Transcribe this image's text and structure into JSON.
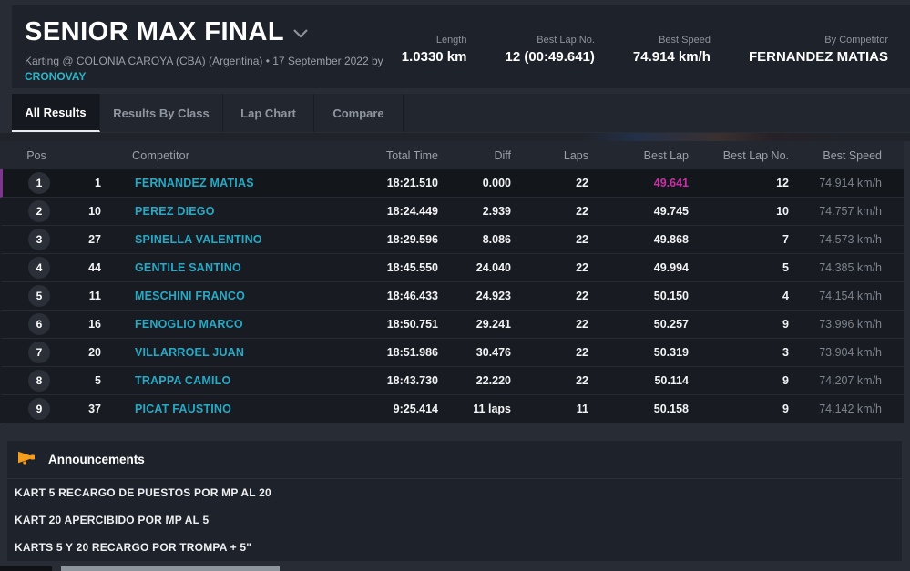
{
  "header": {
    "title": "SENIOR MAX FINAL",
    "subtitle": "Karting @ COLONIA CAROYA (CBA) (Argentina) • 17 September 2022 by",
    "organizer_link": "CRONOVAY",
    "stats": [
      {
        "label": "Length",
        "value": "1.0330 km"
      },
      {
        "label": "Best Lap No.",
        "value": "12 (00:49.641)"
      },
      {
        "label": "Best Speed",
        "value": "74.914 km/h"
      },
      {
        "label": "By Competitor",
        "value": "FERNANDEZ MATIAS"
      }
    ]
  },
  "tabs": [
    {
      "label": "All Results",
      "active": true
    },
    {
      "label": "Results By Class",
      "active": false
    },
    {
      "label": "Lap Chart",
      "active": false
    },
    {
      "label": "Compare",
      "active": false
    }
  ],
  "table": {
    "headers": [
      "Pos",
      "",
      "Competitor",
      "Total Time",
      "Diff",
      "Laps",
      "Best Lap",
      "Best Lap No.",
      "Best Speed"
    ],
    "rows": [
      {
        "pos": "1",
        "kart_no": "1",
        "competitor": "FERNANDEZ MATIAS",
        "total_time": "18:21.510",
        "diff": "0.000",
        "laps": "22",
        "best_lap": "49.641",
        "best_lap_no": "12",
        "best_speed": "74.914 km/h",
        "highlight": true
      },
      {
        "pos": "2",
        "kart_no": "10",
        "competitor": "PEREZ DIEGO",
        "total_time": "18:24.449",
        "diff": "2.939",
        "laps": "22",
        "best_lap": "49.745",
        "best_lap_no": "10",
        "best_speed": "74.757 km/h",
        "highlight": false
      },
      {
        "pos": "3",
        "kart_no": "27",
        "competitor": "SPINELLA VALENTINO",
        "total_time": "18:29.596",
        "diff": "8.086",
        "laps": "22",
        "best_lap": "49.868",
        "best_lap_no": "7",
        "best_speed": "74.573 km/h",
        "highlight": false
      },
      {
        "pos": "4",
        "kart_no": "44",
        "competitor": "GENTILE SANTINO",
        "total_time": "18:45.550",
        "diff": "24.040",
        "laps": "22",
        "best_lap": "49.994",
        "best_lap_no": "5",
        "best_speed": "74.385 km/h",
        "highlight": false
      },
      {
        "pos": "5",
        "kart_no": "11",
        "competitor": "MESCHINI FRANCO",
        "total_time": "18:46.433",
        "diff": "24.923",
        "laps": "22",
        "best_lap": "50.150",
        "best_lap_no": "4",
        "best_speed": "74.154 km/h",
        "highlight": false
      },
      {
        "pos": "6",
        "kart_no": "16",
        "competitor": "FENOGLIO MARCO",
        "total_time": "18:50.751",
        "diff": "29.241",
        "laps": "22",
        "best_lap": "50.257",
        "best_lap_no": "9",
        "best_speed": "73.996 km/h",
        "highlight": false
      },
      {
        "pos": "7",
        "kart_no": "20",
        "competitor": "VILLARROEL JUAN",
        "total_time": "18:51.986",
        "diff": "30.476",
        "laps": "22",
        "best_lap": "50.319",
        "best_lap_no": "3",
        "best_speed": "73.904 km/h",
        "highlight": false
      },
      {
        "pos": "8",
        "kart_no": "5",
        "competitor": "TRAPPA CAMILO",
        "total_time": "18:43.730",
        "diff": "22.220",
        "laps": "22",
        "best_lap": "50.114",
        "best_lap_no": "9",
        "best_speed": "74.207 km/h",
        "highlight": false
      },
      {
        "pos": "9",
        "kart_no": "37",
        "competitor": "PICAT FAUSTINO",
        "total_time": "9:25.414",
        "diff": "11 laps",
        "laps": "11",
        "best_lap": "50.158",
        "best_lap_no": "9",
        "best_speed": "74.142 km/h",
        "highlight": false
      }
    ]
  },
  "announcements": {
    "title": "Announcements",
    "items": [
      "KART 5 RECARGO DE PUESTOS POR MP AL 20",
      "KART 20 APERCIBIDO POR MP AL 5",
      "KARTS 5 Y 20 RECARGO POR TROMPA + 5\""
    ]
  },
  "colors": {
    "page_bg": "#282c34",
    "card_bg": "#1e222a",
    "accent_cyan": "#27a9c5",
    "best_lap_pink": "#cb2fa7",
    "highlight_purple": "#7d3590",
    "announcement_orange": "#f59e1b",
    "link_cyan": "#2cb5c8"
  }
}
